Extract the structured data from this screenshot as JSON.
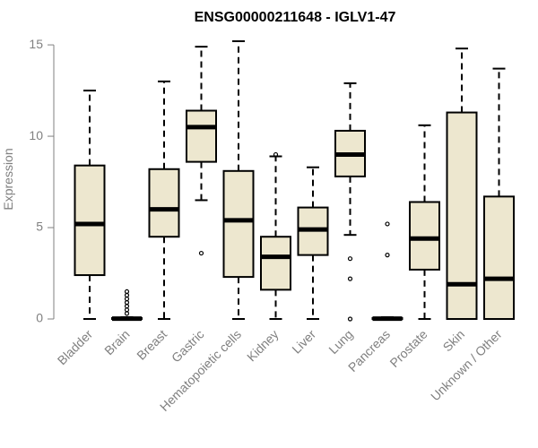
{
  "chart_data": {
    "type": "box",
    "title": "ENSG00000211648 - IGLV1-47",
    "ylabel": "Expression",
    "xlabel": "",
    "ylim": [
      0,
      15.5
    ],
    "yticks": [
      0,
      5,
      10,
      15
    ],
    "box_fill": "#ede7cf",
    "axis_color": "#808080",
    "categories": [
      "Bladder",
      "Brain",
      "Breast",
      "Gastric",
      "Hematopoietic cells",
      "Kidney",
      "Liver",
      "Lung",
      "Pancreas",
      "Prostate",
      "Skin",
      "Unknown / Other"
    ],
    "boxes": [
      {
        "min": 0,
        "q1": 2.4,
        "median": 5.2,
        "q3": 8.4,
        "max": 12.5,
        "outliers": []
      },
      {
        "min": 0,
        "q1": 0,
        "median": 0.02,
        "q3": 0.05,
        "max": 0.1,
        "outliers": [
          0.3,
          0.5,
          0.7,
          0.9,
          1.1,
          1.3,
          1.5
        ]
      },
      {
        "min": 0,
        "q1": 4.5,
        "median": 6.0,
        "q3": 8.2,
        "max": 13.0,
        "outliers": []
      },
      {
        "min": 6.5,
        "q1": 8.6,
        "median": 10.5,
        "q3": 11.4,
        "max": 14.9,
        "outliers": [
          3.6
        ]
      },
      {
        "min": 0,
        "q1": 2.3,
        "median": 5.4,
        "q3": 8.1,
        "max": 15.2,
        "outliers": []
      },
      {
        "min": 0,
        "q1": 1.6,
        "median": 3.4,
        "q3": 4.5,
        "max": 8.9,
        "outliers": [
          9.0
        ]
      },
      {
        "min": 0,
        "q1": 3.5,
        "median": 4.9,
        "q3": 6.1,
        "max": 8.3,
        "outliers": []
      },
      {
        "min": 4.6,
        "q1": 7.8,
        "median": 9.0,
        "q3": 10.3,
        "max": 12.9,
        "outliers": [
          0.0,
          2.2,
          3.3
        ]
      },
      {
        "min": 0,
        "q1": 0,
        "median": 0.02,
        "q3": 0.05,
        "max": 0.1,
        "outliers": [
          3.5,
          5.2
        ]
      },
      {
        "min": 0,
        "q1": 2.7,
        "median": 4.4,
        "q3": 6.4,
        "max": 10.6,
        "outliers": []
      },
      {
        "min": 0,
        "q1": 0,
        "median": 1.9,
        "q3": 11.3,
        "max": 14.8,
        "outliers": []
      },
      {
        "min": 0,
        "q1": 0,
        "median": 2.2,
        "q3": 6.7,
        "max": 13.7,
        "outliers": []
      }
    ]
  }
}
